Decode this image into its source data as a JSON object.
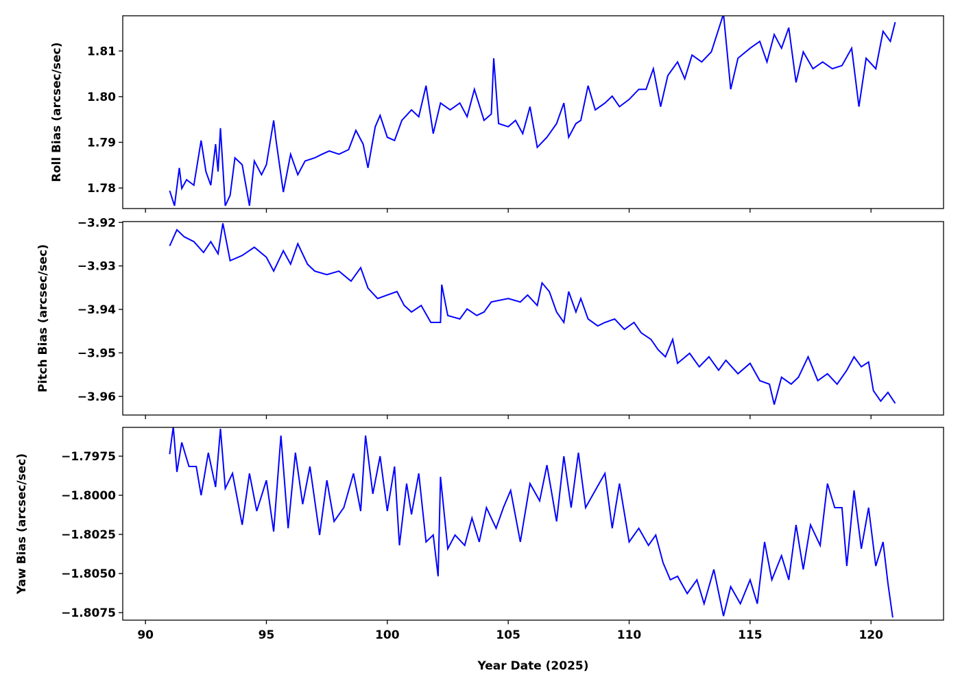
{
  "chart_data": [
    {
      "type": "line",
      "ylabel": "Roll Bias (arcsec/sec)",
      "xlabel": "",
      "xlim": [
        89.06,
        123.0
      ],
      "ylim": [
        1.7755,
        1.8177
      ],
      "xticks": [
        90,
        95,
        100,
        105,
        110,
        115,
        120
      ],
      "show_xtick_labels": false,
      "yticks": [
        1.78,
        1.79,
        1.8,
        1.81
      ],
      "ytick_labels": [
        "1.78",
        "1.79",
        "1.80",
        "1.81"
      ],
      "color": "#0000ff",
      "grid": false,
      "x": [
        91.0,
        91.2,
        91.4,
        91.5,
        91.7,
        92.0,
        92.3,
        92.5,
        92.7,
        92.9,
        93.0,
        93.1,
        93.3,
        93.5,
        93.7,
        94.0,
        94.3,
        94.5,
        94.8,
        95.0,
        95.3,
        95.4,
        95.7,
        96.0,
        96.3,
        96.6,
        97.0,
        97.3,
        97.6,
        98.0,
        98.4,
        98.7,
        99.0,
        99.2,
        99.5,
        99.7,
        100.0,
        100.3,
        100.6,
        101.0,
        101.3,
        101.6,
        101.9,
        102.2,
        102.6,
        103.0,
        103.3,
        103.6,
        104.0,
        104.3,
        104.4,
        104.6,
        105.0,
        105.3,
        105.6,
        105.9,
        106.2,
        106.6,
        107.0,
        107.3,
        107.5,
        107.8,
        108.0,
        108.3,
        108.6,
        109.0,
        109.3,
        109.6,
        110.0,
        110.4,
        110.7,
        111.0,
        111.3,
        111.6,
        112.0,
        112.3,
        112.6,
        113.0,
        113.4,
        113.9,
        114.2,
        114.5,
        115.0,
        115.4,
        115.7,
        116.0,
        116.3,
        116.6,
        116.9,
        117.2,
        117.6,
        118.0,
        118.4,
        118.8,
        119.2,
        119.5,
        119.8,
        120.2,
        120.5,
        120.8,
        121.0
      ],
      "y": [
        1.7794,
        1.7761,
        1.7844,
        1.7799,
        1.7818,
        1.7806,
        1.7904,
        1.7836,
        1.7806,
        1.7896,
        1.7836,
        1.7931,
        1.7761,
        1.7784,
        1.7866,
        1.7851,
        1.7761,
        1.7859,
        1.7829,
        1.7851,
        1.7948,
        1.7904,
        1.7791,
        1.7874,
        1.7829,
        1.7859,
        1.7866,
        1.7874,
        1.7881,
        1.7874,
        1.7884,
        1.7926,
        1.7896,
        1.7844,
        1.7934,
        1.7959,
        1.7911,
        1.7904,
        1.7948,
        1.7971,
        1.7956,
        1.8024,
        1.7919,
        1.7986,
        1.7971,
        1.7986,
        1.7956,
        1.8016,
        1.7948,
        1.7962,
        1.8084,
        1.7941,
        1.7934,
        1.7948,
        1.7919,
        1.7978,
        1.7889,
        1.7911,
        1.7941,
        1.7986,
        1.7911,
        1.7941,
        1.7948,
        1.8024,
        1.7971,
        1.7986,
        1.8001,
        1.7978,
        1.7994,
        1.8016,
        1.8016,
        1.8061,
        1.7978,
        1.8046,
        1.8076,
        1.8039,
        1.8091,
        1.8076,
        1.8098,
        1.8181,
        1.8016,
        1.8084,
        1.8106,
        1.8121,
        1.8076,
        1.8136,
        1.8106,
        1.8151,
        1.8031,
        1.8098,
        1.8061,
        1.8076,
        1.8061,
        1.8068,
        1.8106,
        1.7978,
        1.8084,
        1.8061,
        1.8143,
        1.8121,
        1.8163
      ]
    },
    {
      "type": "line",
      "ylabel": "Pitch Bias (arcsec/sec)",
      "xlabel": "",
      "xlim": [
        89.06,
        123.0
      ],
      "ylim": [
        -3.9643,
        -3.9198
      ],
      "xticks": [
        90,
        95,
        100,
        105,
        110,
        115,
        120
      ],
      "show_xtick_labels": false,
      "yticks": [
        -3.96,
        -3.95,
        -3.94,
        -3.93,
        -3.92
      ],
      "ytick_labels": [
        "−3.96",
        "−3.95",
        "−3.94",
        "−3.93",
        "−3.92"
      ],
      "color": "#0000ff",
      "grid": false,
      "x": [
        91.0,
        91.3,
        91.6,
        92.0,
        92.4,
        92.7,
        93.0,
        93.2,
        93.5,
        94.0,
        94.5,
        95.0,
        95.3,
        95.7,
        96.0,
        96.3,
        96.7,
        97.0,
        97.5,
        98.0,
        98.5,
        98.9,
        99.2,
        99.6,
        100.0,
        100.4,
        100.7,
        101.0,
        101.4,
        101.8,
        102.2,
        102.25,
        102.5,
        103.0,
        103.3,
        103.7,
        104.0,
        104.3,
        105.0,
        105.5,
        105.8,
        106.2,
        106.4,
        106.7,
        107.0,
        107.3,
        107.5,
        107.8,
        108.0,
        108.3,
        108.7,
        109.0,
        109.4,
        109.8,
        110.2,
        110.5,
        110.9,
        111.2,
        111.5,
        111.8,
        112.0,
        112.5,
        112.9,
        113.3,
        113.7,
        114.0,
        114.5,
        115.0,
        115.4,
        115.8,
        116.0,
        116.3,
        116.7,
        117.0,
        117.4,
        117.8,
        118.2,
        118.6,
        119.0,
        119.3,
        119.6,
        119.9,
        120.1,
        120.4,
        120.7,
        121.0
      ],
      "y": [
        -3.9254,
        -3.9217,
        -3.9233,
        -3.9244,
        -3.9269,
        -3.9244,
        -3.9272,
        -3.9202,
        -3.9288,
        -3.9276,
        -3.9257,
        -3.928,
        -3.9312,
        -3.9265,
        -3.9296,
        -3.9249,
        -3.9296,
        -3.9312,
        -3.932,
        -3.9312,
        -3.9335,
        -3.9304,
        -3.9351,
        -3.9375,
        -3.9367,
        -3.9359,
        -3.9391,
        -3.9406,
        -3.9391,
        -3.943,
        -3.943,
        -3.9343,
        -3.9414,
        -3.9422,
        -3.9399,
        -3.9414,
        -3.9406,
        -3.9383,
        -3.9375,
        -3.9383,
        -3.9367,
        -3.9391,
        -3.9339,
        -3.9359,
        -3.9406,
        -3.943,
        -3.9359,
        -3.9406,
        -3.9375,
        -3.9422,
        -3.9438,
        -3.943,
        -3.9422,
        -3.9446,
        -3.943,
        -3.9454,
        -3.9469,
        -3.9493,
        -3.9509,
        -3.9469,
        -3.9524,
        -3.9501,
        -3.9532,
        -3.9509,
        -3.954,
        -3.9517,
        -3.9548,
        -3.9524,
        -3.9564,
        -3.9572,
        -3.9619,
        -3.9556,
        -3.9572,
        -3.9556,
        -3.9509,
        -3.9564,
        -3.9548,
        -3.9572,
        -3.954,
        -3.9509,
        -3.9532,
        -3.9521,
        -3.9587,
        -3.9611,
        -3.9591,
        -3.9616
      ]
    },
    {
      "type": "line",
      "ylabel": "Yaw Bias (arcsec/sec)",
      "xlabel": "Year Date (2025)",
      "xlim": [
        89.06,
        123.0
      ],
      "ylim": [
        -1.80798,
        -1.79566
      ],
      "xticks": [
        90,
        95,
        100,
        105,
        110,
        115,
        120
      ],
      "xtick_labels": [
        "90",
        "95",
        "100",
        "105",
        "110",
        "115",
        "120"
      ],
      "show_xtick_labels": true,
      "yticks": [
        -1.8075,
        -1.805,
        -1.8025,
        -1.8,
        -1.7975
      ],
      "ytick_labels": [
        "−1.8075",
        "−1.8050",
        "−1.8025",
        "−1.8000",
        "−1.7975"
      ],
      "color": "#0000ff",
      "grid": false,
      "x": [
        91.0,
        91.15,
        91.3,
        91.5,
        91.8,
        92.1,
        92.3,
        92.6,
        92.9,
        93.1,
        93.3,
        93.6,
        94.0,
        94.3,
        94.6,
        95.0,
        95.3,
        95.6,
        95.9,
        96.2,
        96.5,
        96.8,
        97.2,
        97.5,
        97.8,
        98.2,
        98.6,
        98.9,
        99.1,
        99.4,
        99.7,
        100.0,
        100.3,
        100.5,
        100.8,
        101.0,
        101.3,
        101.6,
        101.9,
        102.1,
        102.2,
        102.5,
        102.8,
        103.2,
        103.5,
        103.8,
        104.1,
        104.5,
        104.8,
        105.1,
        105.5,
        105.9,
        106.3,
        106.6,
        107.0,
        107.3,
        107.6,
        107.9,
        108.2,
        108.6,
        109.0,
        109.3,
        109.6,
        110.0,
        110.4,
        110.8,
        111.1,
        111.4,
        111.7,
        112.0,
        112.4,
        112.8,
        113.1,
        113.5,
        113.9,
        114.2,
        114.6,
        115.0,
        115.3,
        115.6,
        115.9,
        116.3,
        116.6,
        116.9,
        117.2,
        117.5,
        117.9,
        118.2,
        118.5,
        118.8,
        119.0,
        119.3,
        119.6,
        119.9,
        120.2,
        120.5,
        120.7,
        120.9
      ],
      "y": [
        -1.79737,
        -1.79561,
        -1.79851,
        -1.79662,
        -1.79816,
        -1.79816,
        -1.8,
        -1.79728,
        -1.79947,
        -1.79575,
        -1.79956,
        -1.7986,
        -1.80189,
        -1.7986,
        -1.80101,
        -1.79904,
        -1.80232,
        -1.79618,
        -1.80211,
        -1.79728,
        -1.80057,
        -1.79816,
        -1.80254,
        -1.79904,
        -1.80167,
        -1.80079,
        -1.7986,
        -1.80101,
        -1.79618,
        -1.79991,
        -1.7975,
        -1.80101,
        -1.79816,
        -1.8032,
        -1.79925,
        -1.80123,
        -1.7986,
        -1.80298,
        -1.80254,
        -1.80518,
        -1.79882,
        -1.80342,
        -1.80254,
        -1.8032,
        -1.80145,
        -1.80298,
        -1.80079,
        -1.80211,
        -1.80079,
        -1.79969,
        -1.80298,
        -1.79925,
        -1.80035,
        -1.79807,
        -1.80167,
        -1.7975,
        -1.80079,
        -1.79728,
        -1.80079,
        -1.79969,
        -1.7986,
        -1.80211,
        -1.79925,
        -1.80298,
        -1.80211,
        -1.8032,
        -1.80254,
        -1.8043,
        -1.8054,
        -1.80518,
        -1.80628,
        -1.8054,
        -1.80693,
        -1.80474,
        -1.80772,
        -1.80584,
        -1.80693,
        -1.8054,
        -1.80693,
        -1.80298,
        -1.8054,
        -1.80386,
        -1.8054,
        -1.80189,
        -1.80474,
        -1.80189,
        -1.8032,
        -1.79925,
        -1.80079,
        -1.80079,
        -1.80452,
        -1.79969,
        -1.80342,
        -1.80079,
        -1.80452,
        -1.80298,
        -1.80562,
        -1.80781
      ]
    }
  ]
}
